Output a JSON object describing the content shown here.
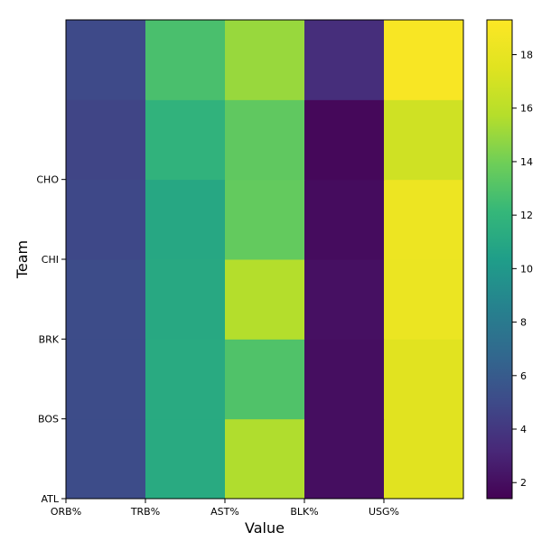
{
  "chart_data": {
    "type": "heatmap",
    "title": "",
    "xlabel": "Value",
    "ylabel": "Team",
    "columns": [
      "ORB%",
      "TRB%",
      "AST%",
      "BLK%",
      "USG%"
    ],
    "rows_bottom_to_top": [
      "ATL",
      "BOS",
      "BRK",
      "CHI",
      "CHO",
      ""
    ],
    "y_tick_labels": [
      "ATL",
      "BOS",
      "BRK",
      "CHI",
      "CHO"
    ],
    "values": [
      [
        5.1,
        11.2,
        15.6,
        2.0,
        17.6
      ],
      [
        5.1,
        11.2,
        13.0,
        2.0,
        17.6
      ],
      [
        5.1,
        11.1,
        15.7,
        2.1,
        18.2
      ],
      [
        4.9,
        11.0,
        13.6,
        1.9,
        18.3
      ],
      [
        4.7,
        11.8,
        13.5,
        1.7,
        16.8
      ],
      [
        5.0,
        12.8,
        15.0,
        3.5,
        19.0
      ]
    ],
    "colorbar": {
      "min": 1.4,
      "max": 19.3,
      "ticks": [
        2,
        4,
        6,
        8,
        10,
        12,
        14,
        16,
        18
      ],
      "colormap": "viridis"
    },
    "grid": false,
    "legend": "colorbar-right"
  }
}
